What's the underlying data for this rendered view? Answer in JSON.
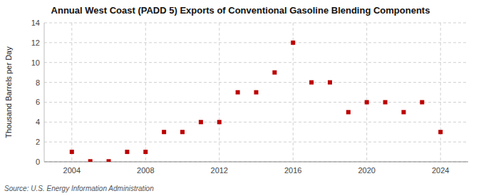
{
  "chart_data": {
    "type": "scatter",
    "title": "Annual West Coast (PADD 5) Exports of Conventional Gasoline Blending Components",
    "y_label": "Thousand Barrels per Day",
    "source": "Source: U.S. Energy Information Administration",
    "x": [
      2004,
      2005,
      2006,
      2007,
      2008,
      2009,
      2010,
      2011,
      2012,
      2013,
      2014,
      2015,
      2016,
      2017,
      2018,
      2019,
      2020,
      2021,
      2022,
      2023,
      2024
    ],
    "values": [
      1.0,
      0.05,
      0.05,
      1.0,
      1.0,
      3.0,
      3.0,
      4.0,
      4.0,
      7.0,
      7.0,
      9.0,
      12.0,
      8.0,
      8.0,
      5.0,
      6.0,
      6.0,
      5.0,
      6.0,
      3.0
    ],
    "color": "#bb0000",
    "marker": "square",
    "xlim": [
      2002.5,
      2025.5
    ],
    "ylim": [
      0,
      14
    ],
    "xticks": [
      2004,
      2008,
      2012,
      2016,
      2020,
      2024
    ],
    "yticks": [
      0,
      2,
      4,
      6,
      8,
      10,
      12,
      14
    ],
    "grid": true
  }
}
